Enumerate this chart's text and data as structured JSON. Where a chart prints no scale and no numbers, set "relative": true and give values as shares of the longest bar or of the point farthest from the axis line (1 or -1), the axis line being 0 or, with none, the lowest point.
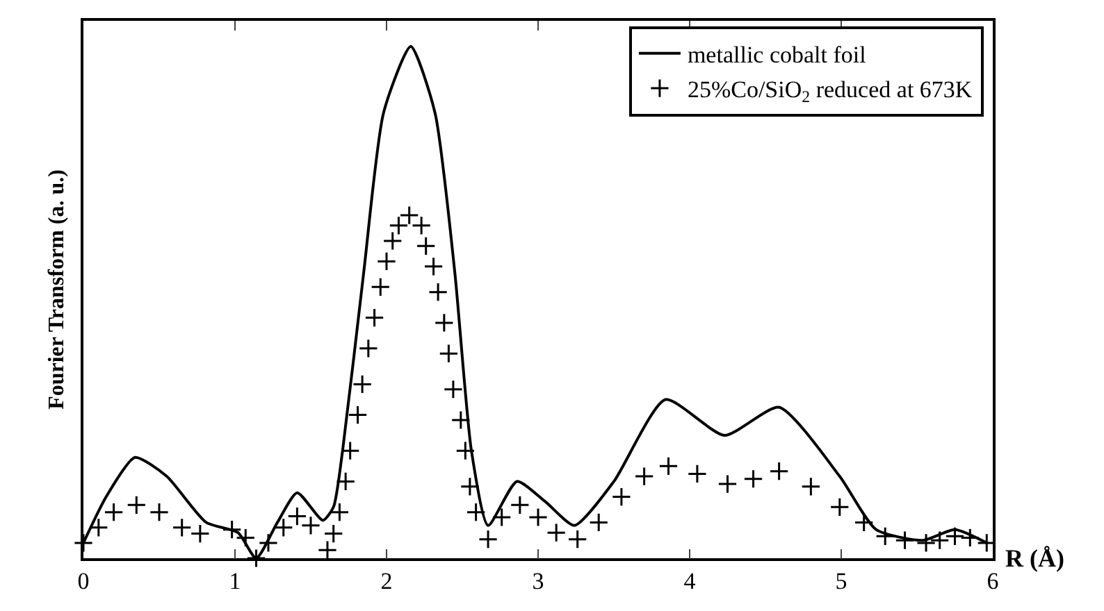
{
  "chart_data": {
    "type": "line",
    "relative": true,
    "xlabel": "R (Å)",
    "ylabel": "Fourier Transform (a. u.)",
    "xlim": [
      0,
      6
    ],
    "xticks": [
      0,
      1,
      2,
      3,
      4,
      5,
      6
    ],
    "tick_labels": "x",
    "legend": "top right",
    "series": [
      {
        "name": "metallic cobalt foil",
        "color": "#000000",
        "line_style": "solid",
        "marker": "none",
        "x": [
          0,
          0.15,
          0.34,
          0.55,
          0.81,
          1.02,
          1.14,
          1.28,
          1.41,
          1.58,
          1.65,
          1.71,
          1.85,
          1.98,
          2.16,
          2.32,
          2.45,
          2.56,
          2.67,
          2.86,
          3.05,
          3.24,
          3.5,
          3.84,
          4.23,
          4.59,
          4.99,
          5.23,
          5.54,
          5.75,
          5.96
        ],
        "values": [
          0.03,
          0.12,
          0.197,
          0.16,
          0.07,
          0.05,
          0.0,
          0.07,
          0.128,
          0.074,
          0.1,
          0.21,
          0.56,
          0.87,
          1.0,
          0.87,
          0.56,
          0.21,
          0.064,
          0.15,
          0.11,
          0.064,
          0.15,
          0.31,
          0.24,
          0.295,
          0.16,
          0.056,
          0.035,
          0.056,
          0.03
        ]
      },
      {
        "name": "25%Co/SiO$_{2}$ reduced at 673K",
        "type": "scatter",
        "color": "#000000",
        "marker": "cross",
        "x": [
          0,
          0.1,
          0.2,
          0.35,
          0.5,
          0.65,
          0.77,
          0.98,
          1.07,
          1.14,
          1.22,
          1.32,
          1.41,
          1.5,
          1.61,
          1.65,
          1.69,
          1.73,
          1.76,
          1.81,
          1.84,
          1.88,
          1.92,
          1.96,
          2.0,
          2.04,
          2.08,
          2.15,
          2.23,
          2.26,
          2.31,
          2.34,
          2.38,
          2.41,
          2.44,
          2.49,
          2.52,
          2.55,
          2.59,
          2.67,
          2.76,
          2.88,
          3.0,
          3.12,
          3.26,
          3.4,
          3.55,
          3.7,
          3.86,
          4.05,
          4.25,
          4.42,
          4.59,
          4.8,
          4.99,
          5.15,
          5.29,
          5.42,
          5.56,
          5.65,
          5.75,
          5.85,
          5.96
        ],
        "values": [
          0.03,
          0.06,
          0.09,
          0.104,
          0.09,
          0.06,
          0.048,
          0.056,
          0.04,
          0.0,
          0.03,
          0.06,
          0.082,
          0.064,
          0.016,
          0.048,
          0.09,
          0.15,
          0.21,
          0.28,
          0.34,
          0.41,
          0.47,
          0.53,
          0.58,
          0.62,
          0.65,
          0.67,
          0.65,
          0.61,
          0.57,
          0.52,
          0.46,
          0.4,
          0.33,
          0.27,
          0.21,
          0.14,
          0.09,
          0.037,
          0.08,
          0.104,
          0.08,
          0.05,
          0.037,
          0.07,
          0.12,
          0.16,
          0.18,
          0.165,
          0.145,
          0.155,
          0.17,
          0.14,
          0.1,
          0.07,
          0.043,
          0.035,
          0.03,
          0.035,
          0.043,
          0.04,
          0.03
        ]
      }
    ]
  }
}
